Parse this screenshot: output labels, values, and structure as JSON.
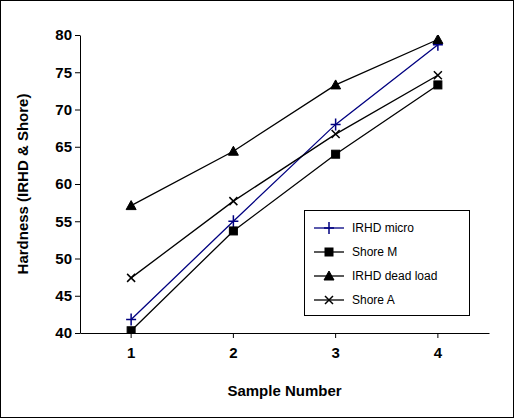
{
  "chart_data": {
    "type": "line",
    "x_label": "Sample Number",
    "y_label": "Hardness (IRHD & Shore)",
    "categories": [
      "1",
      "2",
      "3",
      "4"
    ],
    "series": [
      {
        "name": "IRHD micro",
        "color": "#000080",
        "marker": "plus",
        "values": [
          41.8,
          55,
          68,
          78.7
        ]
      },
      {
        "name": "Shore M",
        "color": "#000000",
        "marker": "square",
        "values": [
          40.3,
          53.7,
          64,
          73.3
        ]
      },
      {
        "name": "IRHD dead load",
        "color": "#000000",
        "marker": "triangle",
        "values": [
          57.1,
          64.4,
          73.3,
          79.4
        ]
      },
      {
        "name": "Shore A",
        "color": "#000000",
        "marker": "x",
        "values": [
          47.4,
          57.7,
          66.7,
          74.6
        ]
      }
    ],
    "ylim": [
      40,
      80
    ],
    "yticks": [
      40,
      45,
      50,
      55,
      60,
      65,
      70,
      75,
      80
    ],
    "grid": false,
    "legend": "lower right"
  }
}
